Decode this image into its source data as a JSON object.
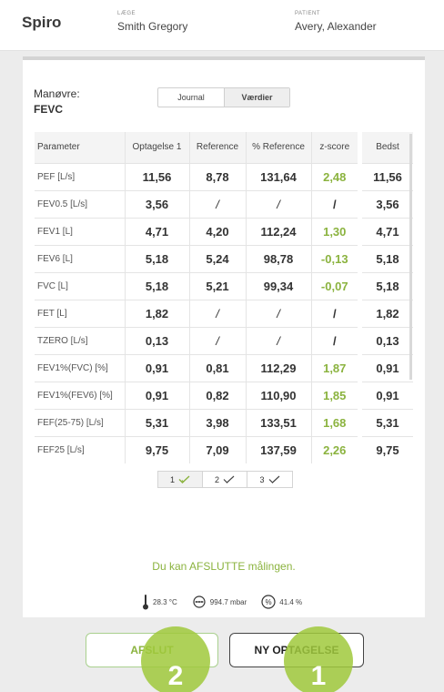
{
  "app": {
    "title": "Spiro"
  },
  "doctor": {
    "caption": "LÆGE",
    "name": "Smith Gregory"
  },
  "patient": {
    "caption": "PATIENT",
    "name": "Avery, Alexander"
  },
  "maneuver": {
    "label": "Manøvre:",
    "value": "FEVC"
  },
  "view_toggle": {
    "journal": "Journal",
    "values": "Værdier",
    "selected": "Værdier"
  },
  "table": {
    "headers": [
      "Parameter",
      "Optagelse 1",
      "Reference",
      "% Reference",
      "z-score"
    ],
    "rows": [
      {
        "param": "PEF [L/s]",
        "rec": "11,56",
        "ref": "8,78",
        "pct": "131,64",
        "z": "2,48"
      },
      {
        "param": "FEV0.5 [L/s]",
        "rec": "3,56",
        "ref": "/",
        "pct": "/",
        "z": "/"
      },
      {
        "param": "FEV1 [L]",
        "rec": "4,71",
        "ref": "4,20",
        "pct": "112,24",
        "z": "1,30"
      },
      {
        "param": "FEV6 [L]",
        "rec": "5,18",
        "ref": "5,24",
        "pct": "98,78",
        "z": "-0,13"
      },
      {
        "param": "FVC [L]",
        "rec": "5,18",
        "ref": "5,21",
        "pct": "99,34",
        "z": "-0,07"
      },
      {
        "param": "FET [L]",
        "rec": "1,82",
        "ref": "/",
        "pct": "/",
        "z": "/"
      },
      {
        "param": "TZERO [L/s]",
        "rec": "0,13",
        "ref": "/",
        "pct": "/",
        "z": "/"
      },
      {
        "param": "FEV1%(FVC) [%]",
        "rec": "0,91",
        "ref": "0,81",
        "pct": "112,29",
        "z": "1,87"
      },
      {
        "param": "FEV1%(FEV6) [%]",
        "rec": "0,91",
        "ref": "0,82",
        "pct": "110,90",
        "z": "1,85"
      },
      {
        "param": "FEF(25-75) [L/s]",
        "rec": "5,31",
        "ref": "3,98",
        "pct": "133,51",
        "z": "1,68"
      },
      {
        "param": "FEF25 [L/s]",
        "rec": "9,75",
        "ref": "7,09",
        "pct": "137,59",
        "z": "2,26"
      }
    ]
  },
  "best": {
    "header": "Bedst",
    "values": [
      "11,56",
      "3,56",
      "4,71",
      "5,18",
      "5,18",
      "1,82",
      "0,13",
      "0,91",
      "0,91",
      "5,31",
      "9,75"
    ]
  },
  "pager": {
    "items": [
      "1",
      "2",
      "3"
    ],
    "active": "1"
  },
  "message": "Du kan AFSLUTTE målingen.",
  "environment": {
    "temperature": "28.3 °C",
    "pressure": "994.7 mbar",
    "humidity": "41.4 %"
  },
  "actions": {
    "finish": "AFSLUT",
    "new_recording": "NY OPTAGELSE"
  },
  "step_badges": {
    "finish": "2",
    "new_recording": "1"
  },
  "colors": {
    "accent_green": "#8bb33f",
    "badge_green": "#a0c93c"
  },
  "icons": [
    "thermometer-icon",
    "barometer-icon",
    "humidity-icon",
    "check-icon"
  ]
}
